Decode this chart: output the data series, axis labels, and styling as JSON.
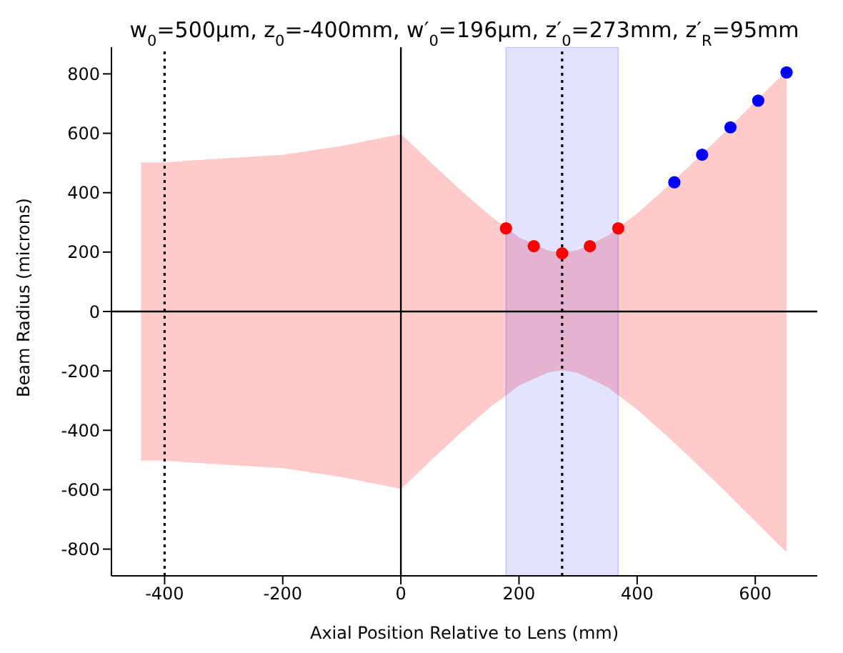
{
  "chart_data": {
    "type": "scatter",
    "title": "w$_{0}$=500µm, z$_{0}$=-400mm, w′$_{0}$=196µm, z′$_{0}$=273mm, z′$_{R}$=95mm",
    "xlabel": "Axial Position Relative to Lens (mm)",
    "ylabel": "Beam Radius (microns)",
    "xlim": [
      -490,
      705
    ],
    "ylim": [
      -890,
      890
    ],
    "xticks": [
      -400,
      -200,
      0,
      200,
      400,
      600
    ],
    "yticks": [
      -800,
      -600,
      -400,
      -200,
      0,
      200,
      400,
      600,
      800
    ],
    "series": [
      {
        "type": "area",
        "color": "#ffcaca",
        "x": [
          -440,
          -400,
          -300,
          -200,
          -100,
          0,
          50,
          100,
          150,
          200,
          250,
          273,
          300,
          350,
          400,
          450,
          500,
          550,
          600,
          653
        ],
        "values": [
          500,
          500,
          513,
          525,
          555,
          595,
          500,
          407,
          321,
          247,
          202,
          196,
          204,
          252,
          327,
          415,
          508,
          604,
          703,
          808
        ]
      },
      {
        "type": "area",
        "color": "#ffcaca",
        "x": [
          -440,
          -400,
          -300,
          -200,
          -100,
          0,
          50,
          100,
          150,
          200,
          250,
          273,
          300,
          350,
          400,
          450,
          500,
          550,
          600,
          653
        ],
        "values": [
          -500,
          -500,
          -513,
          -525,
          -555,
          -595,
          -500,
          -407,
          -321,
          -247,
          -202,
          -196,
          -204,
          -252,
          -327,
          -415,
          -508,
          -604,
          -703,
          -808
        ]
      },
      {
        "color": "#ff0000",
        "marker": "circle",
        "x": [
          178,
          225,
          273,
          320,
          368
        ],
        "values": [
          280,
          220,
          196,
          220,
          280
        ]
      },
      {
        "color": "#0000ff",
        "marker": "circle",
        "x": [
          463,
          510,
          558,
          605,
          653
        ],
        "values": [
          435,
          528,
          620,
          710,
          805
        ]
      }
    ],
    "bands": [
      {
        "axis": "x",
        "from": 178,
        "to": 368,
        "color": "#0000ff"
      }
    ],
    "ref_lines": [
      {
        "axis": "x",
        "value": -400,
        "line_style": "dotted",
        "color": "#000000"
      },
      {
        "axis": "x",
        "value": 273,
        "line_style": "dotted",
        "color": "#000000"
      },
      {
        "axis": "x",
        "value": 0,
        "line_style": "solid",
        "color": "#000000"
      },
      {
        "axis": "y",
        "value": 0,
        "line_style": "solid",
        "color": "#000000"
      }
    ]
  }
}
